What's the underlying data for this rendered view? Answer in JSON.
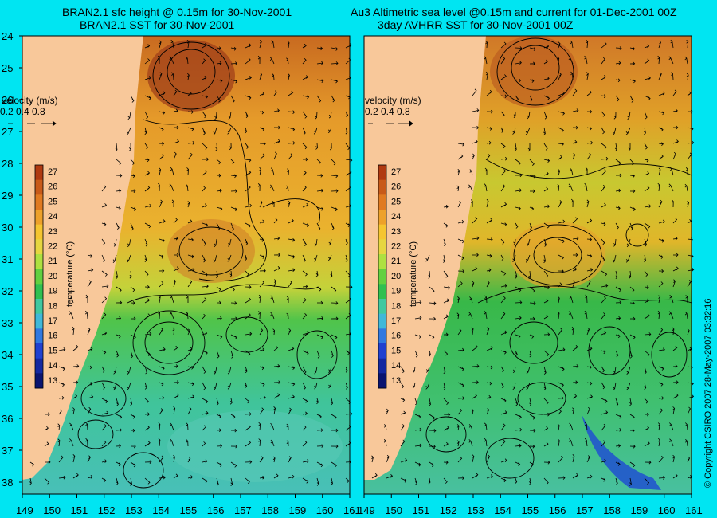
{
  "left_panel": {
    "title_line1": "BRAN2.1 sfc height @ 0.15m for 30-Nov-2001",
    "title_line2": "BRAN2.1 SST for 30-Nov-2001"
  },
  "right_panel": {
    "title_line1": "Au3 Altimetric sea level  @0.15m and current for 01-Dec-2001 00Z",
    "title_line2": "3day AVHRR SST for 30-Nov-2001 00Z"
  },
  "velocity_legend": {
    "label": "velocity (m/s)",
    "values": [
      "0.2",
      "0.4",
      "0.8"
    ]
  },
  "colorbar": {
    "label": "temperature (°C)",
    "ticks": [
      "27",
      "26",
      "25",
      "24",
      "23",
      "22",
      "21",
      "20",
      "19",
      "18",
      "17",
      "16",
      "15",
      "14",
      "13"
    ],
    "colors": [
      "#b03a10",
      "#c85a18",
      "#e07a20",
      "#eda12a",
      "#f5c530",
      "#e6d640",
      "#aee040",
      "#62d040",
      "#30c050",
      "#40c8a0",
      "#40b8d8",
      "#3078e0",
      "#2040d0",
      "#1428a0",
      "#0a1470"
    ]
  },
  "left_axis_ticks": [
    "24",
    "25",
    "26",
    "27",
    "28",
    "29",
    "30",
    "31",
    "32",
    "33",
    "34",
    "35",
    "36",
    "37",
    "38"
  ],
  "bottom_axis_ticks_left": [
    "149",
    "150",
    "151",
    "152",
    "153",
    "154",
    "155",
    "156",
    "157",
    "158",
    "159",
    "160",
    "161"
  ],
  "bottom_axis_ticks_right": [
    "149",
    "150",
    "151",
    "152",
    "153",
    "154",
    "155",
    "156",
    "157",
    "158",
    "159",
    "160",
    "161"
  ],
  "copyright": "© Copyright CSIRO 2007   28-May-2007 03:32:16"
}
